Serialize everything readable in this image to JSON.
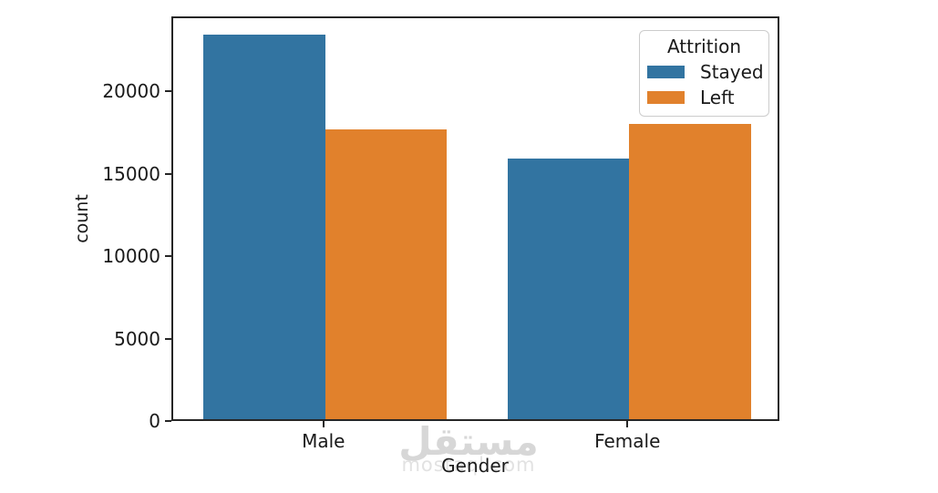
{
  "watermark": {
    "arabic": "مستقل",
    "domain": "mostaql.com"
  },
  "colors": {
    "stayed_blue": "#3274a1",
    "left_orange": "#e1812c",
    "spine": "#262626",
    "text": "#1a1a1a",
    "legend_border": "#cccccc",
    "watermark_gray": "#d7d7d7"
  },
  "chart_data": {
    "type": "bar",
    "title": "",
    "xlabel": "Gender",
    "ylabel": "count",
    "categories": [
      "Male",
      "Female"
    ],
    "series": [
      {
        "name": "Stayed",
        "color": "#3274a1",
        "values": [
          23350,
          15800
        ]
      },
      {
        "name": "Left",
        "color": "#e1812c",
        "values": [
          17600,
          17900
        ]
      }
    ],
    "ylim": [
      0,
      24550
    ],
    "yticks": [
      0,
      5000,
      10000,
      15000,
      20000
    ],
    "legend": {
      "title": "Attrition",
      "position": "upper-right"
    },
    "grid": false,
    "bar_group_width": 0.8
  }
}
